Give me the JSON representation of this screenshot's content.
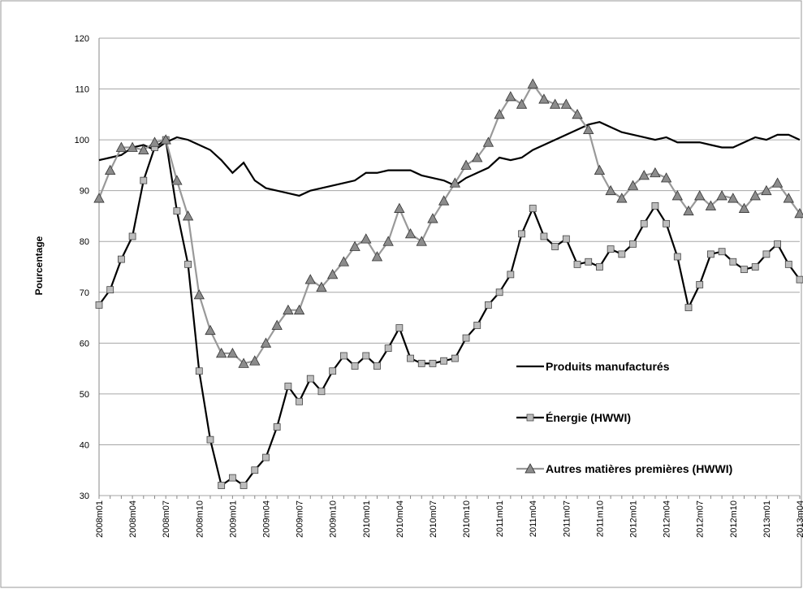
{
  "chart_data": {
    "type": "line",
    "y_label": "Pourcentage",
    "categories": [
      "2008m01",
      null,
      null,
      "2008m04",
      null,
      null,
      "2008m07",
      null,
      null,
      "2008m10",
      null,
      null,
      "2009m01",
      null,
      null,
      "2009m04",
      null,
      null,
      "2009m07",
      null,
      null,
      "2009m10",
      null,
      null,
      "2010m01",
      null,
      null,
      "2010m04",
      null,
      null,
      "2010m07",
      null,
      null,
      "2010m10",
      null,
      null,
      "2011m01",
      null,
      null,
      "2011m04",
      null,
      null,
      "2011m07",
      null,
      null,
      "2011m10",
      null,
      null,
      "2012m01",
      null,
      null,
      "2012m04",
      null,
      null,
      "2012m07",
      null,
      null,
      "2012m10",
      null,
      null,
      "2013m01",
      null,
      null,
      "2013m04"
    ],
    "series": [
      {
        "name": "Produits manufacturés",
        "color": "#000000",
        "marker": "none",
        "values": [
          96,
          96.5,
          97,
          98.5,
          99,
          98,
          99.5,
          100.5,
          100,
          99,
          98,
          96,
          93.5,
          95.5,
          92,
          90.5,
          90,
          89.5,
          89,
          90,
          90.5,
          91,
          91.5,
          92,
          93.5,
          93.5,
          94,
          94,
          94,
          93,
          92.5,
          92,
          91,
          92.5,
          93.5,
          94.5,
          96.5,
          96,
          96.5,
          98,
          99,
          100,
          101,
          102,
          103,
          103.5,
          102.5,
          101.5,
          101,
          100.5,
          100,
          100.5,
          99.5,
          99.5,
          99.5,
          99,
          98.5,
          98.5,
          99.5,
          100.5,
          100,
          101,
          101,
          100
        ]
      },
      {
        "name": "Énergie (HWWI)",
        "color": "#000000",
        "marker": "square",
        "marker_color": "#bdbdbd",
        "values": [
          67.5,
          70.5,
          76.5,
          81,
          92,
          98.5,
          100,
          86,
          75.5,
          54.5,
          41,
          32,
          33.5,
          32,
          35,
          37.5,
          43.5,
          51.5,
          48.5,
          53,
          50.5,
          54.5,
          57.5,
          55.5,
          57.5,
          55.5,
          59,
          63,
          57,
          56,
          56,
          56.5,
          57,
          61,
          63.5,
          67.5,
          70,
          73.5,
          81.5,
          86.5,
          81,
          79,
          80.5,
          75.5,
          76,
          75,
          78.5,
          77.5,
          79.5,
          83.5,
          87,
          83.5,
          77,
          67,
          71.5,
          77.5,
          78,
          76,
          74.5,
          75,
          77.5,
          79.5,
          75.5,
          72.5
        ]
      },
      {
        "name": "Autres matières premières (HWWI)",
        "color": "#999999",
        "marker": "triangle",
        "marker_color": "#8c8c8c",
        "values": [
          88.5,
          94,
          98.5,
          98.5,
          98,
          99.5,
          100,
          92,
          85,
          69.5,
          62.5,
          58,
          58,
          56,
          56.5,
          60,
          63.5,
          66.5,
          66.5,
          72.5,
          71,
          73.5,
          76,
          79,
          80.5,
          77,
          80,
          86.5,
          81.5,
          80,
          84.5,
          88,
          91.5,
          95,
          96.5,
          99.5,
          105,
          108.5,
          107,
          111,
          108,
          107,
          107,
          105,
          102,
          94,
          90,
          88.5,
          91,
          93,
          93.5,
          92.5,
          89,
          86,
          89,
          87,
          89,
          88.5,
          86.5,
          89,
          90,
          91.5,
          88.5,
          85.5
        ]
      }
    ],
    "ylim": [
      30,
      120
    ],
    "yticks": [
      30,
      40,
      50,
      60,
      70,
      80,
      90,
      100,
      110,
      120
    ],
    "grid": true,
    "legend": "right"
  }
}
